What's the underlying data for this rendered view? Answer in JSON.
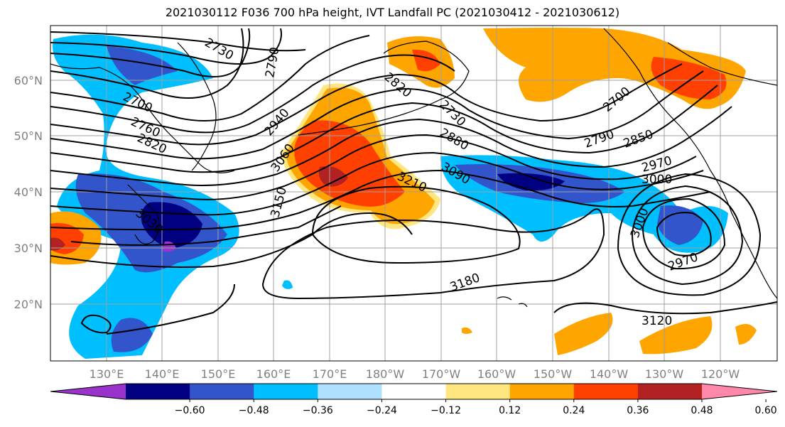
{
  "title": "2021030112 F036 700 hPa height, IVT Landfall PC (2021030412 - 2021030612)",
  "lat_labels": [
    "60°N",
    "50°N",
    "40°N",
    "30°N",
    "20°N"
  ],
  "lon_labels": [
    "130°E",
    "140°E",
    "150°E",
    "160°E",
    "170°E",
    "180°W",
    "170°W",
    "160°W",
    "150°W",
    "140°W",
    "130°W",
    "120°W"
  ],
  "colorbar": {
    "ticks": [
      "−0.60",
      "−0.48",
      "−0.36",
      "−0.24",
      "−0.12",
      "0.12",
      "0.24",
      "0.36",
      "0.48",
      "0.60"
    ],
    "colors": [
      "#9933cc",
      "#000080",
      "#3355cc",
      "#00bfff",
      "#b0e0ff",
      "#ffffff",
      "#ffe680",
      "#ffa500",
      "#ff4000",
      "#b22222",
      "#ff88aa"
    ]
  },
  "contour_labels": [
    "2730",
    "2790",
    "2700",
    "2760",
    "2820",
    "2940",
    "2820",
    "2730",
    "2880",
    "2700",
    "2790",
    "2850",
    "3060",
    "3210",
    "3090",
    "2970",
    "3000",
    "3150",
    "3000",
    "2970",
    "3180",
    "3120",
    "3030"
  ]
}
